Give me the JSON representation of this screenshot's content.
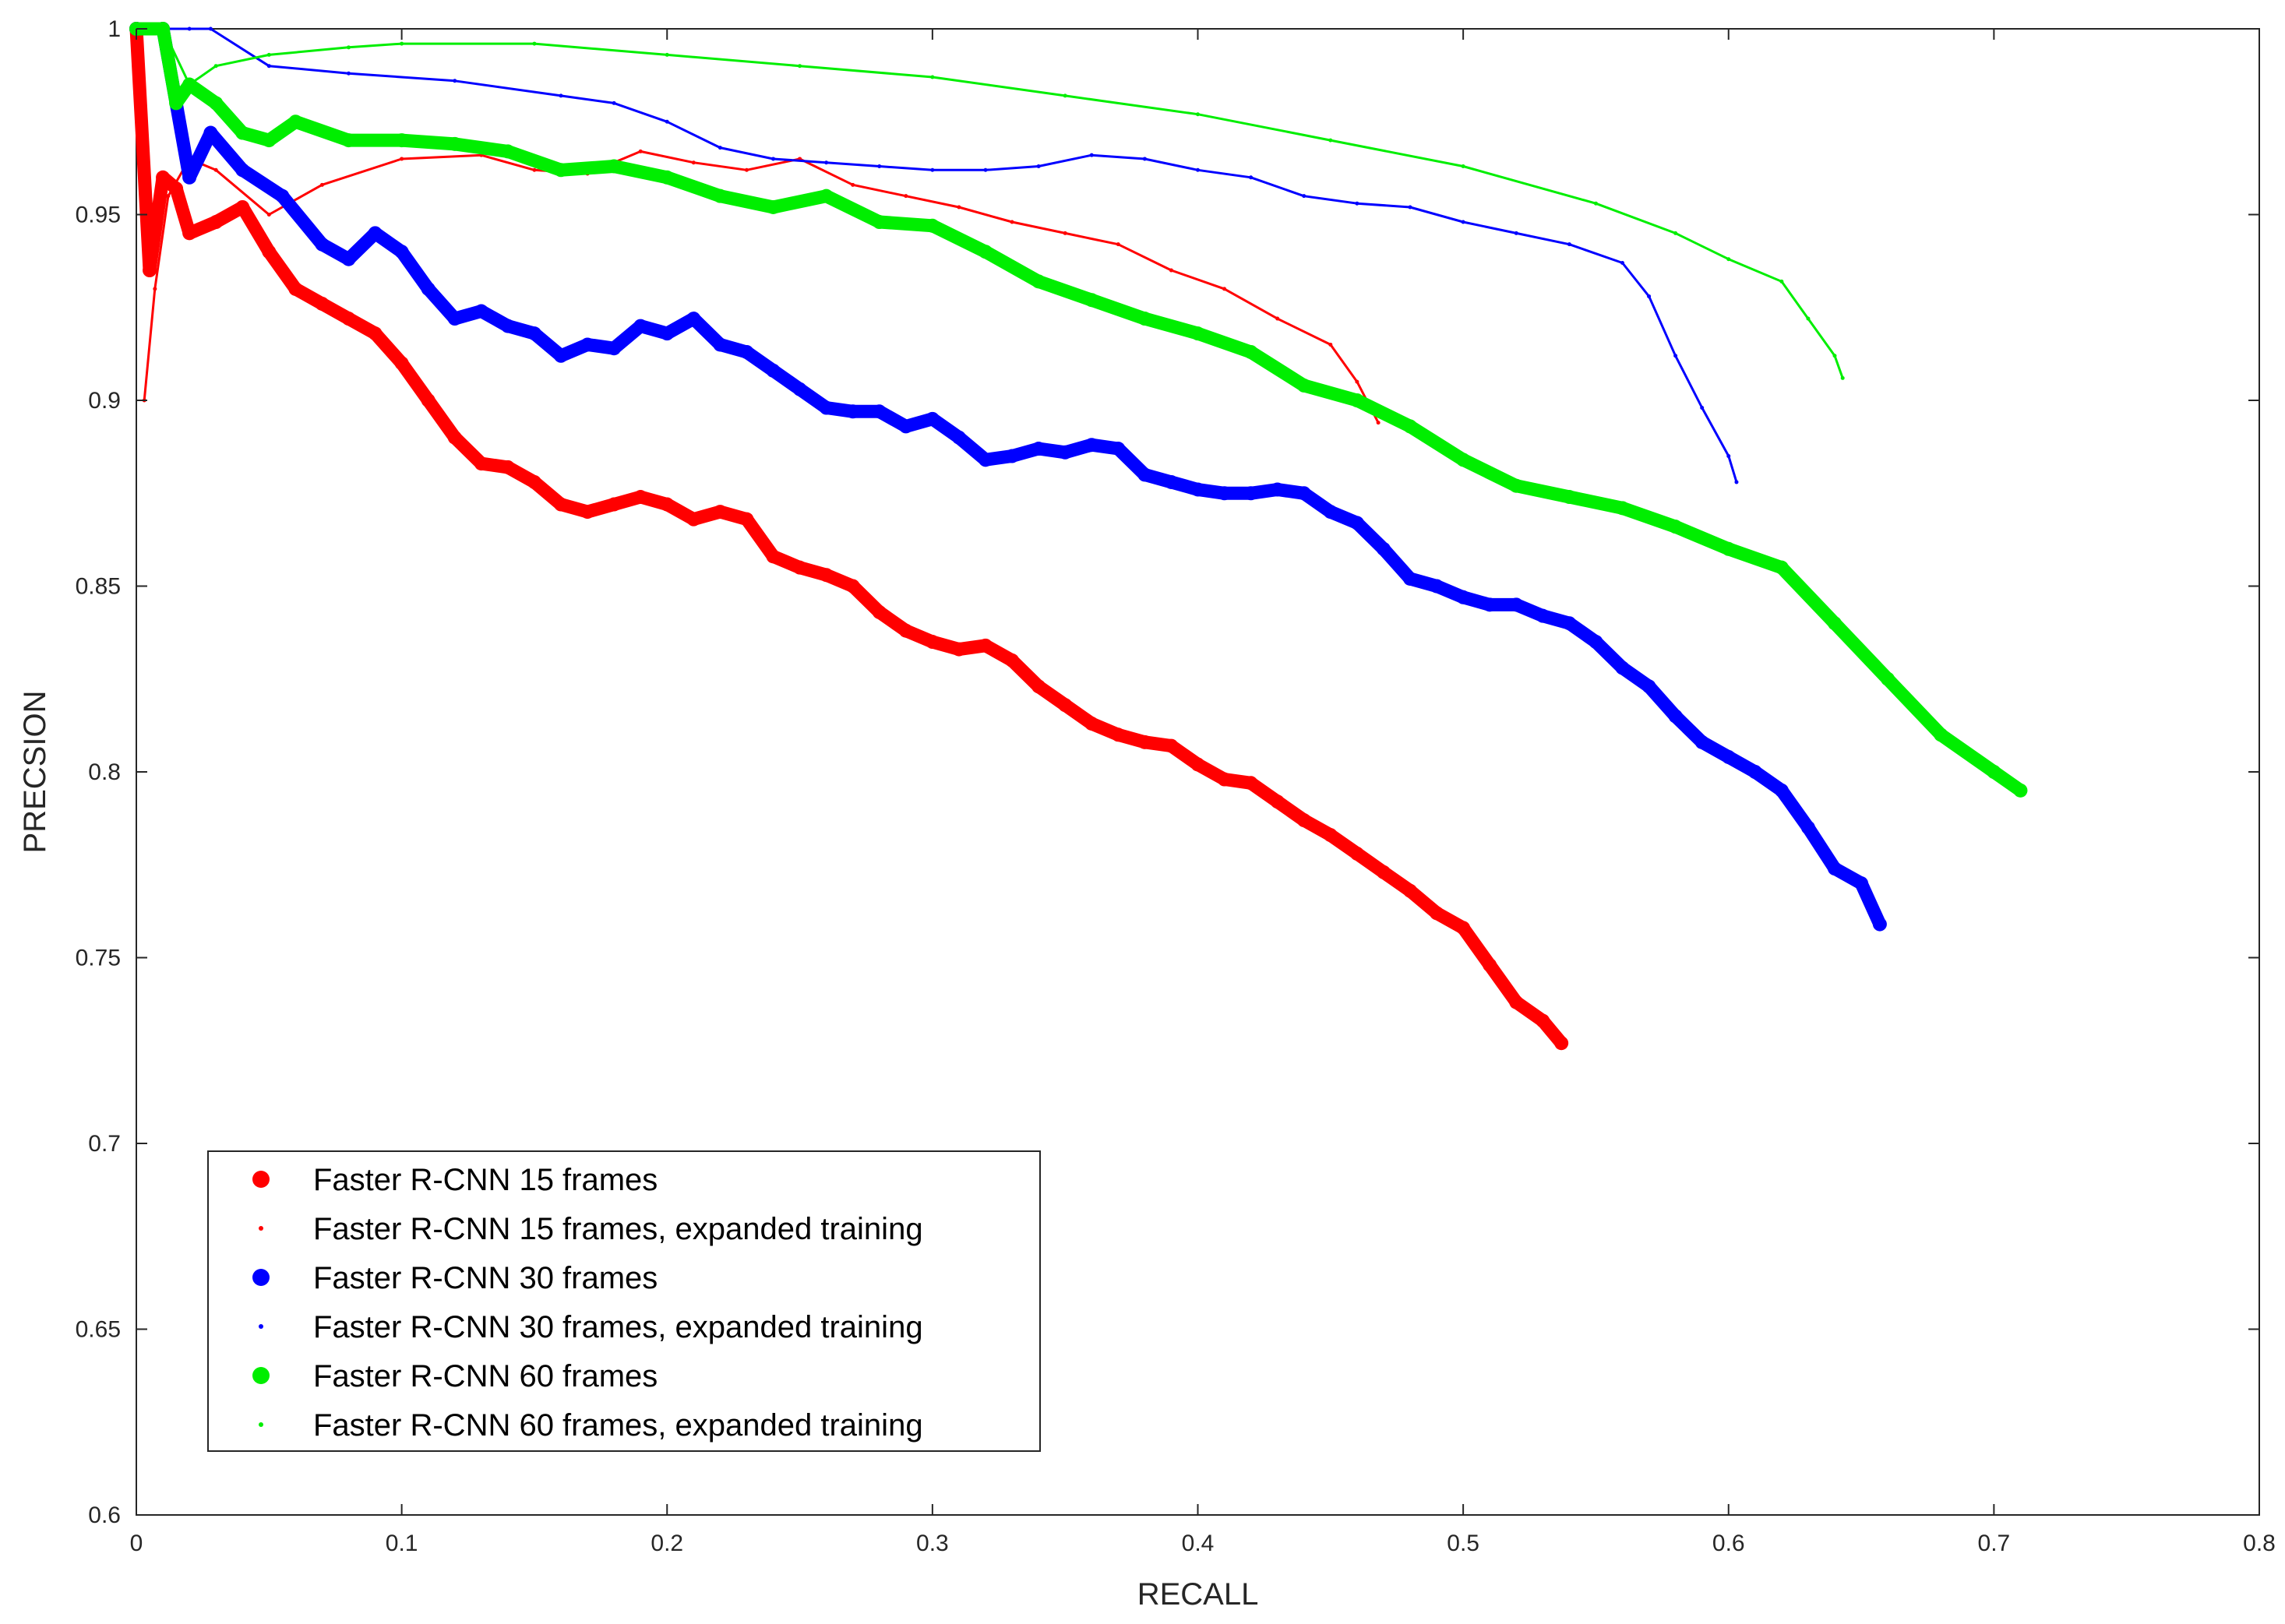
{
  "chart_data": {
    "type": "line",
    "title": "",
    "xlabel": "RECALL",
    "ylabel": "PRECSION",
    "xlim": [
      0,
      0.8
    ],
    "ylim": [
      0.6,
      1.0
    ],
    "xticks": [
      0,
      0.1,
      0.2,
      0.3,
      0.4,
      0.5,
      0.6,
      0.7,
      0.8
    ],
    "yticks": [
      0.6,
      0.65,
      0.7,
      0.75,
      0.8,
      0.85,
      0.9,
      0.95,
      1
    ],
    "xtick_labels": [
      "0",
      "0.1",
      "0.2",
      "0.3",
      "0.4",
      "0.5",
      "0.6",
      "0.7",
      "0.8"
    ],
    "ytick_labels": [
      "0.6",
      "0.65",
      "0.7",
      "0.75",
      "0.8",
      "0.85",
      "0.9",
      "0.95",
      "1"
    ],
    "grid": false,
    "legend_position": "bottom-left",
    "series": [
      {
        "name": "Faster R-CNN 15 frames",
        "color": "#ff0000",
        "marker": "large-dot",
        "x": [
          0.0,
          0.005,
          0.01,
          0.015,
          0.02,
          0.03,
          0.04,
          0.05,
          0.06,
          0.07,
          0.08,
          0.09,
          0.1,
          0.11,
          0.12,
          0.13,
          0.14,
          0.15,
          0.16,
          0.17,
          0.18,
          0.19,
          0.2,
          0.21,
          0.22,
          0.23,
          0.24,
          0.25,
          0.26,
          0.27,
          0.28,
          0.29,
          0.3,
          0.31,
          0.32,
          0.33,
          0.34,
          0.35,
          0.36,
          0.37,
          0.38,
          0.39,
          0.4,
          0.41,
          0.42,
          0.43,
          0.44,
          0.45,
          0.46,
          0.47,
          0.48,
          0.49,
          0.5,
          0.51,
          0.52,
          0.53,
          0.537
        ],
        "y": [
          1.0,
          0.935,
          0.96,
          0.957,
          0.945,
          0.948,
          0.952,
          0.94,
          0.93,
          0.926,
          0.922,
          0.918,
          0.91,
          0.9,
          0.89,
          0.883,
          0.882,
          0.878,
          0.872,
          0.87,
          0.872,
          0.874,
          0.872,
          0.868,
          0.87,
          0.868,
          0.858,
          0.855,
          0.853,
          0.85,
          0.843,
          0.838,
          0.835,
          0.833,
          0.834,
          0.83,
          0.823,
          0.818,
          0.813,
          0.81,
          0.808,
          0.807,
          0.802,
          0.798,
          0.797,
          0.792,
          0.787,
          0.783,
          0.778,
          0.773,
          0.768,
          0.762,
          0.758,
          0.748,
          0.738,
          0.733,
          0.727
        ]
      },
      {
        "name": "Faster R-CNN 15 frames, expanded training",
        "color": "#ff0000",
        "marker": "small-dot",
        "x": [
          0.003,
          0.007,
          0.012,
          0.02,
          0.03,
          0.05,
          0.07,
          0.1,
          0.13,
          0.15,
          0.17,
          0.19,
          0.21,
          0.23,
          0.25,
          0.27,
          0.29,
          0.31,
          0.33,
          0.35,
          0.37,
          0.39,
          0.41,
          0.43,
          0.45,
          0.46,
          0.468
        ],
        "y": [
          0.9,
          0.93,
          0.955,
          0.965,
          0.962,
          0.95,
          0.958,
          0.965,
          0.966,
          0.962,
          0.961,
          0.967,
          0.964,
          0.962,
          0.965,
          0.958,
          0.955,
          0.952,
          0.948,
          0.945,
          0.942,
          0.935,
          0.93,
          0.922,
          0.915,
          0.905,
          0.894
        ]
      },
      {
        "name": "Faster R-CNN 30 frames",
        "color": "#0000ff",
        "marker": "large-dot",
        "x": [
          0.0,
          0.01,
          0.02,
          0.028,
          0.04,
          0.055,
          0.07,
          0.08,
          0.09,
          0.1,
          0.11,
          0.12,
          0.13,
          0.14,
          0.15,
          0.16,
          0.17,
          0.18,
          0.19,
          0.2,
          0.21,
          0.22,
          0.23,
          0.24,
          0.25,
          0.26,
          0.27,
          0.28,
          0.29,
          0.3,
          0.31,
          0.32,
          0.33,
          0.34,
          0.35,
          0.36,
          0.37,
          0.38,
          0.39,
          0.4,
          0.41,
          0.42,
          0.43,
          0.44,
          0.45,
          0.46,
          0.47,
          0.48,
          0.49,
          0.5,
          0.51,
          0.52,
          0.53,
          0.54,
          0.55,
          0.56,
          0.57,
          0.58,
          0.59,
          0.6,
          0.61,
          0.62,
          0.63,
          0.64,
          0.65,
          0.657
        ],
        "y": [
          1.0,
          1.0,
          0.96,
          0.972,
          0.962,
          0.955,
          0.942,
          0.938,
          0.945,
          0.94,
          0.93,
          0.922,
          0.924,
          0.92,
          0.918,
          0.912,
          0.915,
          0.914,
          0.92,
          0.918,
          0.922,
          0.915,
          0.913,
          0.908,
          0.903,
          0.898,
          0.897,
          0.897,
          0.893,
          0.895,
          0.89,
          0.884,
          0.885,
          0.887,
          0.886,
          0.888,
          0.887,
          0.88,
          0.878,
          0.876,
          0.875,
          0.875,
          0.876,
          0.875,
          0.87,
          0.867,
          0.86,
          0.852,
          0.85,
          0.847,
          0.845,
          0.845,
          0.842,
          0.84,
          0.835,
          0.828,
          0.823,
          0.815,
          0.808,
          0.804,
          0.8,
          0.795,
          0.785,
          0.774,
          0.77,
          0.759
        ]
      },
      {
        "name": "Faster R-CNN 30 frames, expanded training",
        "color": "#0000ff",
        "marker": "small-dot",
        "x": [
          0.0,
          0.01,
          0.02,
          0.028,
          0.05,
          0.08,
          0.12,
          0.16,
          0.18,
          0.2,
          0.22,
          0.24,
          0.26,
          0.28,
          0.3,
          0.32,
          0.34,
          0.36,
          0.38,
          0.4,
          0.42,
          0.44,
          0.46,
          0.48,
          0.5,
          0.52,
          0.54,
          0.56,
          0.57,
          0.58,
          0.59,
          0.6,
          0.603
        ],
        "y": [
          1.0,
          1.0,
          1.0,
          1.0,
          0.99,
          0.988,
          0.986,
          0.982,
          0.98,
          0.975,
          0.968,
          0.965,
          0.964,
          0.963,
          0.962,
          0.962,
          0.963,
          0.966,
          0.965,
          0.962,
          0.96,
          0.955,
          0.953,
          0.952,
          0.948,
          0.945,
          0.942,
          0.937,
          0.928,
          0.912,
          0.898,
          0.885,
          0.878
        ]
      },
      {
        "name": "Faster R-CNN 60 frames",
        "color": "#00ee00",
        "marker": "large-dot",
        "x": [
          0.0,
          0.01,
          0.015,
          0.02,
          0.03,
          0.04,
          0.05,
          0.06,
          0.08,
          0.1,
          0.12,
          0.14,
          0.16,
          0.18,
          0.2,
          0.22,
          0.24,
          0.26,
          0.28,
          0.3,
          0.32,
          0.34,
          0.36,
          0.38,
          0.4,
          0.42,
          0.44,
          0.46,
          0.48,
          0.5,
          0.52,
          0.54,
          0.56,
          0.58,
          0.6,
          0.62,
          0.64,
          0.66,
          0.68,
          0.7,
          0.71
        ],
        "y": [
          1.0,
          1.0,
          0.98,
          0.985,
          0.98,
          0.972,
          0.97,
          0.975,
          0.97,
          0.97,
          0.969,
          0.967,
          0.962,
          0.963,
          0.96,
          0.955,
          0.952,
          0.955,
          0.948,
          0.947,
          0.94,
          0.932,
          0.927,
          0.922,
          0.918,
          0.913,
          0.904,
          0.9,
          0.893,
          0.884,
          0.877,
          0.874,
          0.871,
          0.866,
          0.86,
          0.855,
          0.84,
          0.825,
          0.81,
          0.8,
          0.795
        ]
      },
      {
        "name": "Faster R-CNN 60 frames, expanded training",
        "color": "#00ee00",
        "marker": "small-dot",
        "x": [
          0.0,
          0.01,
          0.02,
          0.03,
          0.05,
          0.08,
          0.1,
          0.15,
          0.2,
          0.25,
          0.3,
          0.35,
          0.4,
          0.45,
          0.5,
          0.55,
          0.58,
          0.6,
          0.62,
          0.63,
          0.64,
          0.643
        ],
        "y": [
          1.0,
          1.0,
          0.985,
          0.99,
          0.993,
          0.995,
          0.996,
          0.996,
          0.993,
          0.99,
          0.987,
          0.982,
          0.977,
          0.97,
          0.963,
          0.953,
          0.945,
          0.938,
          0.932,
          0.922,
          0.912,
          0.906
        ]
      }
    ]
  }
}
